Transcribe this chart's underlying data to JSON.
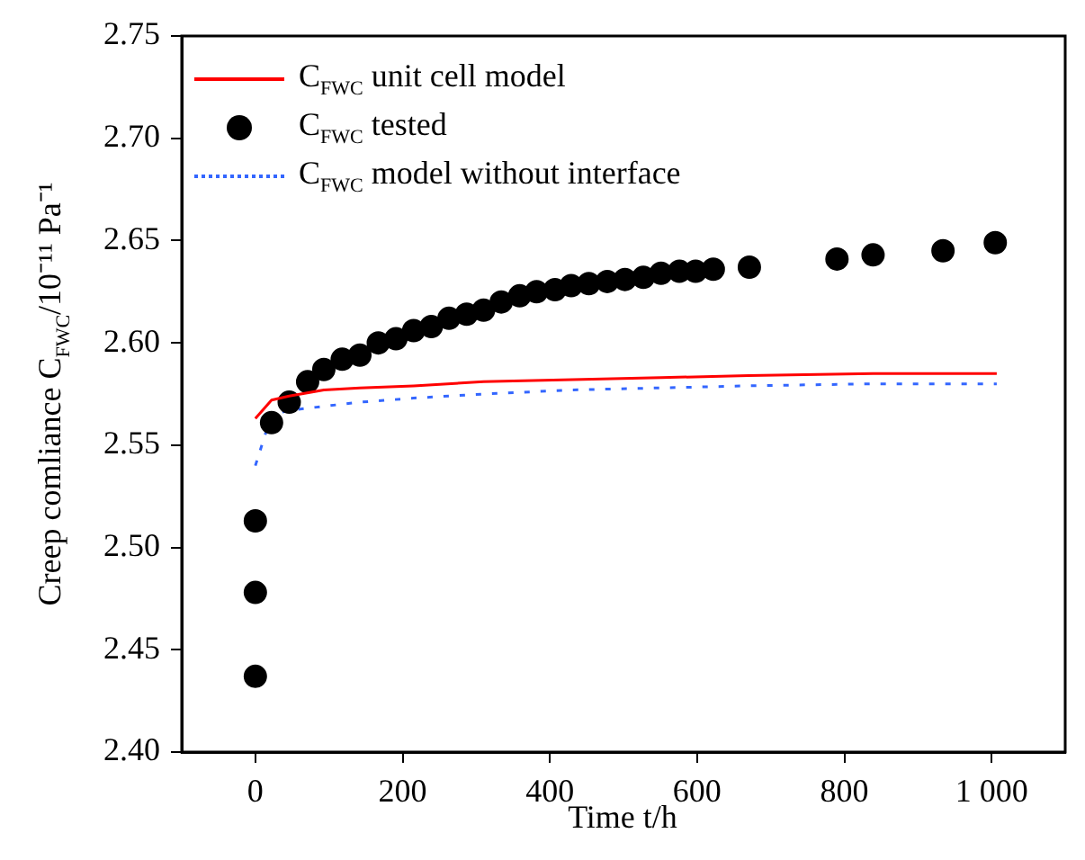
{
  "chart_data": {
    "type": "line",
    "xlabel": "Time t/h",
    "ylabel": "Creep comliance C$_{FWC}$/10⁻¹¹ Pa⁻¹",
    "xlim": [
      -100,
      1100
    ],
    "xticks": [
      0,
      200,
      400,
      600,
      800,
      {
        "value": 1000,
        "label": "1 000"
      }
    ],
    "ylim": [
      2.4,
      2.75
    ],
    "yticks": [
      {
        "value": 2.4,
        "label": "2.40"
      },
      {
        "value": 2.45,
        "label": "2.45"
      },
      {
        "value": 2.5,
        "label": "2.50"
      },
      {
        "value": 2.55,
        "label": "2.55"
      },
      {
        "value": 2.6,
        "label": "2.60"
      },
      {
        "value": 2.65,
        "label": "2.65"
      },
      {
        "value": 2.7,
        "label": "2.70"
      },
      {
        "value": 2.75,
        "label": "2.75"
      }
    ],
    "grid": false,
    "legend": "top left",
    "series": [
      {
        "name": "C$_{FWC}$ unit cell model",
        "color": "#ff0000",
        "line_style": "solid",
        "marker": "none",
        "x": [
          0,
          22,
          46,
          93,
          142,
          215,
          310,
          431,
          551,
          670,
          839,
          1007
        ],
        "values": [
          2.563,
          2.572,
          2.574,
          2.577,
          2.578,
          2.579,
          2.581,
          2.582,
          2.583,
          2.584,
          2.585,
          2.585
        ]
      },
      {
        "name": "C$_{FWC}$ tested",
        "type": "scatter",
        "color": "#000000",
        "marker": "circle",
        "x": [
          0,
          0,
          0,
          22,
          46,
          71,
          93,
          118,
          142,
          167,
          191,
          215,
          239,
          263,
          287,
          310,
          334,
          359,
          382,
          407,
          429,
          453,
          478,
          502,
          527,
          551,
          576,
          598,
          622,
          671,
          790,
          839,
          934,
          1005
        ],
        "values": [
          2.437,
          2.478,
          2.513,
          2.561,
          2.571,
          2.581,
          2.587,
          2.592,
          2.594,
          2.6,
          2.602,
          2.606,
          2.608,
          2.612,
          2.614,
          2.616,
          2.62,
          2.623,
          2.625,
          2.626,
          2.628,
          2.629,
          2.63,
          2.631,
          2.632,
          2.634,
          2.635,
          2.635,
          2.636,
          2.637,
          2.641,
          2.643,
          2.645,
          2.649
        ]
      },
      {
        "name": "C$_{FWC}$ model without interface",
        "color": "#3366ff",
        "line_style": "dotted",
        "marker": "none",
        "x": [
          0,
          22,
          46,
          93,
          142,
          215,
          310,
          431,
          551,
          670,
          839,
          1007
        ],
        "values": [
          2.54,
          2.565,
          2.567,
          2.569,
          2.571,
          2.573,
          2.575,
          2.577,
          2.578,
          2.579,
          2.58,
          2.58
        ]
      }
    ]
  }
}
